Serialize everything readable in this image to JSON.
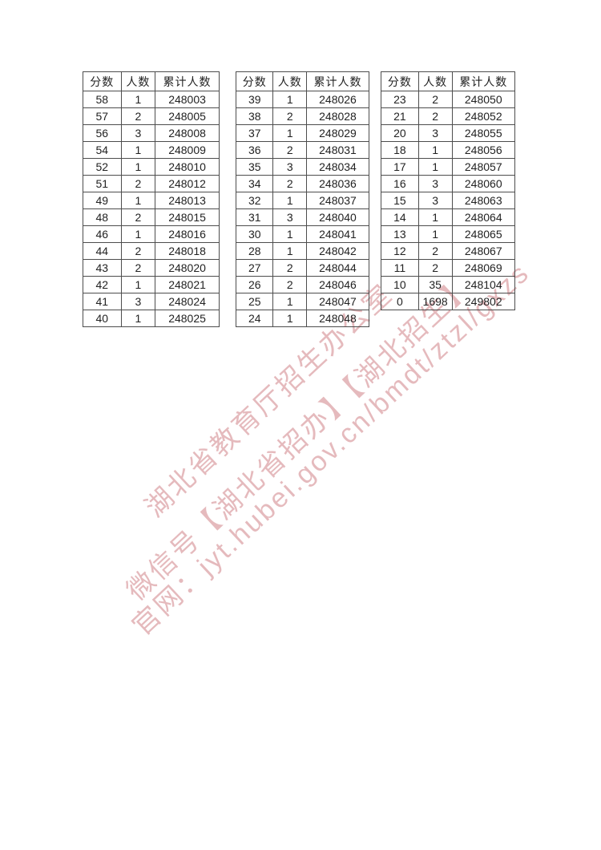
{
  "page": {
    "background": "#ffffff",
    "kind": "score-distribution-document"
  },
  "colors": {
    "table_border": "#4d4d4d",
    "cell_text": "#222222",
    "watermark_pink": "#c6676d"
  },
  "tables": [
    {
      "headers": [
        "分数",
        "人数",
        "累计人数"
      ],
      "rows": [
        [
          "58",
          "1",
          "248003"
        ],
        [
          "57",
          "2",
          "248005"
        ],
        [
          "56",
          "3",
          "248008"
        ],
        [
          "54",
          "1",
          "248009"
        ],
        [
          "52",
          "1",
          "248010"
        ],
        [
          "51",
          "2",
          "248012"
        ],
        [
          "49",
          "1",
          "248013"
        ],
        [
          "48",
          "2",
          "248015"
        ],
        [
          "46",
          "1",
          "248016"
        ],
        [
          "44",
          "2",
          "248018"
        ],
        [
          "43",
          "2",
          "248020"
        ],
        [
          "42",
          "1",
          "248021"
        ],
        [
          "41",
          "3",
          "248024"
        ],
        [
          "40",
          "1",
          "248025"
        ]
      ]
    },
    {
      "headers": [
        "分数",
        "人数",
        "累计人数"
      ],
      "rows": [
        [
          "39",
          "1",
          "248026"
        ],
        [
          "38",
          "2",
          "248028"
        ],
        [
          "37",
          "1",
          "248029"
        ],
        [
          "36",
          "2",
          "248031"
        ],
        [
          "35",
          "3",
          "248034"
        ],
        [
          "34",
          "2",
          "248036"
        ],
        [
          "32",
          "1",
          "248037"
        ],
        [
          "31",
          "3",
          "248040"
        ],
        [
          "30",
          "1",
          "248041"
        ],
        [
          "28",
          "1",
          "248042"
        ],
        [
          "27",
          "2",
          "248044"
        ],
        [
          "26",
          "2",
          "248046"
        ],
        [
          "25",
          "1",
          "248047"
        ],
        [
          "24",
          "1",
          "248048"
        ]
      ]
    },
    {
      "headers": [
        "分数",
        "人数",
        "累计人数"
      ],
      "rows": [
        [
          "23",
          "2",
          "248050"
        ],
        [
          "21",
          "2",
          "248052"
        ],
        [
          "20",
          "3",
          "248055"
        ],
        [
          "18",
          "1",
          "248056"
        ],
        [
          "17",
          "1",
          "248057"
        ],
        [
          "16",
          "3",
          "248060"
        ],
        [
          "15",
          "3",
          "248063"
        ],
        [
          "14",
          "1",
          "248064"
        ],
        [
          "13",
          "1",
          "248065"
        ],
        [
          "12",
          "2",
          "248067"
        ],
        [
          "11",
          "2",
          "248069"
        ],
        [
          "10",
          "35",
          "248104"
        ],
        [
          "0",
          "1698",
          "249802"
        ]
      ]
    }
  ],
  "watermark": {
    "lines": [
      "湖北省教育厅招生办公室",
      "微信号【湖北省招办】【湖北招生】",
      "官网：jyt.hubei.gov.cn/bmdt/ztzl/gxzs"
    ]
  }
}
